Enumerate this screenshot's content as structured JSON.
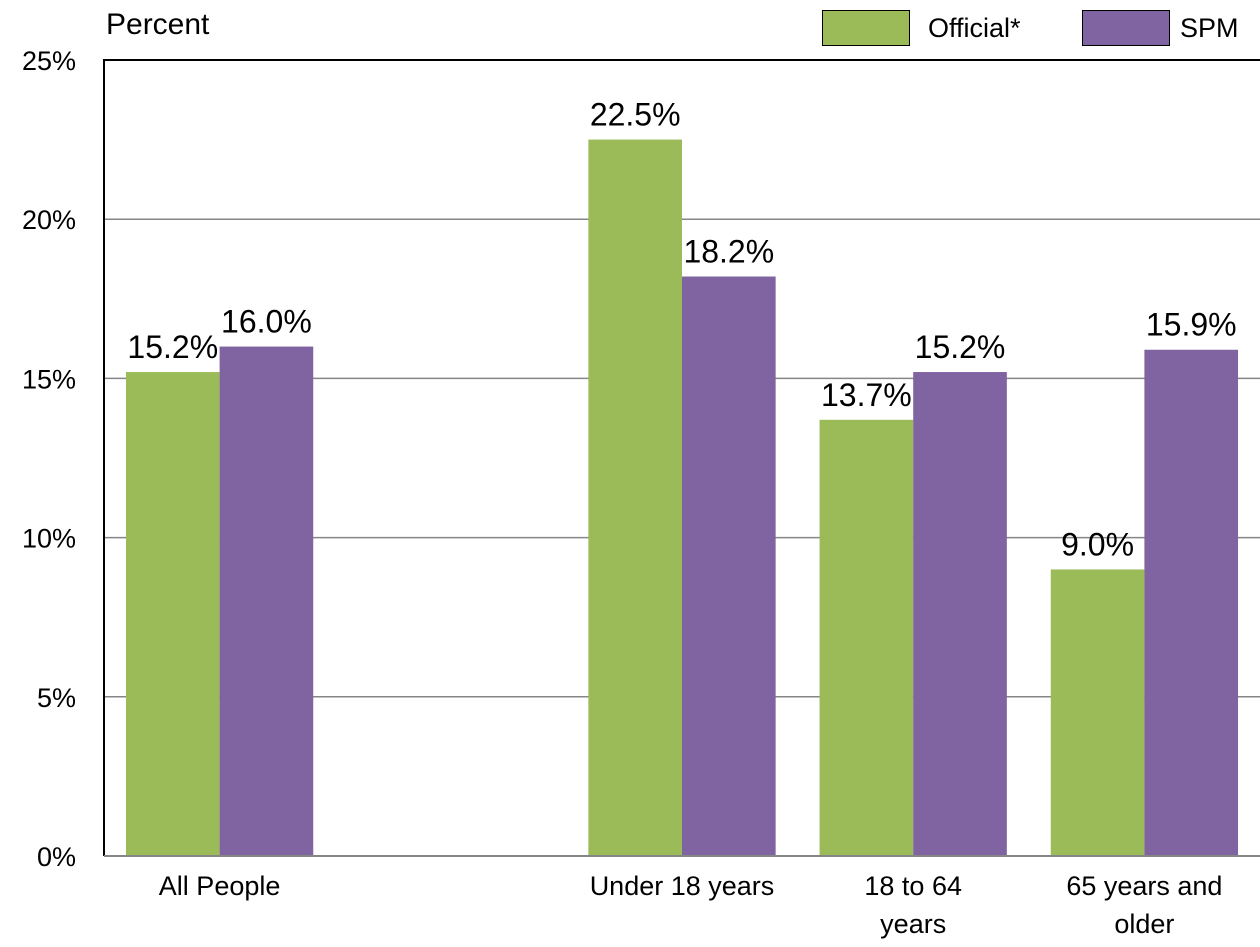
{
  "chart_data": {
    "type": "bar",
    "title": "",
    "ylabel": "Percent",
    "xlabel": "",
    "ylim": [
      0,
      25
    ],
    "yticks": [
      0,
      5,
      10,
      15,
      20,
      25
    ],
    "ytick_labels": [
      "0%",
      "5%",
      "10%",
      "15%",
      "20%",
      "25%"
    ],
    "grid": true,
    "legend_position": "top-right",
    "categories": [
      "All People",
      "",
      "Under 18 years",
      "18 to 64 years",
      "65 years and older"
    ],
    "category_label_lines": [
      [
        "All People"
      ],
      [
        ""
      ],
      [
        "Under 18 years"
      ],
      [
        "18 to 64",
        "years"
      ],
      [
        "65 years and",
        "older"
      ]
    ],
    "series": [
      {
        "name": "Official*",
        "color": "#9bbb59",
        "values": [
          15.2,
          null,
          22.5,
          13.7,
          9.0
        ],
        "labels": [
          "15.2%",
          "",
          "22.5%",
          "13.7%",
          "9.0%"
        ]
      },
      {
        "name": "SPM",
        "color": "#8064a2",
        "values": [
          16.0,
          null,
          18.2,
          15.2,
          15.9
        ],
        "labels": [
          "16.0%",
          "",
          "18.2%",
          "15.2%",
          "15.9%"
        ]
      }
    ]
  }
}
